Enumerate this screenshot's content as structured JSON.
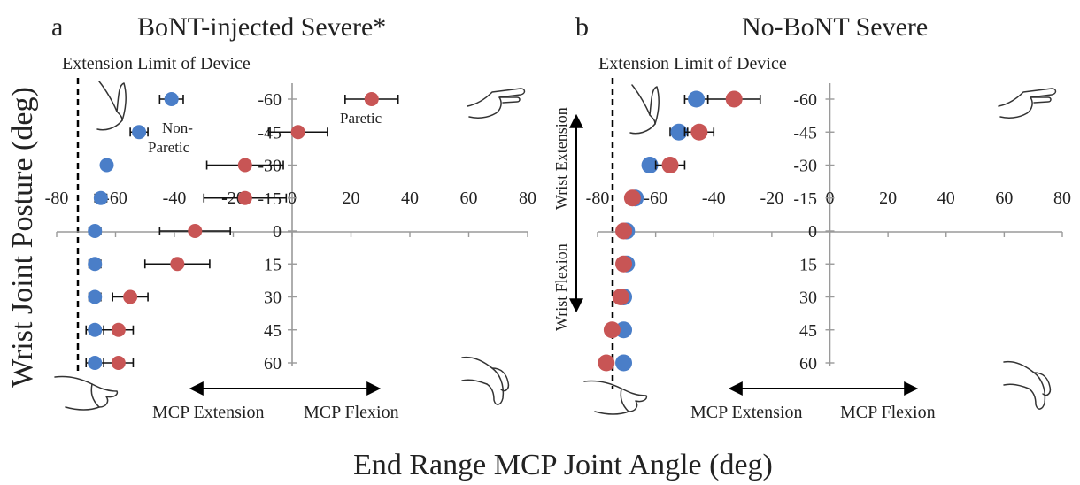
{
  "figure": {
    "ylabel": "Wrist Joint Posture (deg)",
    "xlabel": "End Range MCP Joint Angle (deg)"
  },
  "colors": {
    "non_paretic": "#4a7ec8",
    "paretic": "#c85555",
    "axis": "#9a9a9a"
  },
  "icons": {
    "extended_hand": "hand-extended-icon",
    "flexed_hand": "hand-flexed-icon",
    "pointing_hand": "hand-pointing-icon",
    "drooping_hand": "hand-drooping-icon"
  },
  "panels": [
    {
      "letter": "a",
      "title": "BoNT-injected Severe*",
      "limit_label": "Extension Limit of Device",
      "mcp_extension_label": "MCP Extension",
      "mcp_flexion_label": "MCP Flexion",
      "legend_non_paretic": [
        "Non-",
        "Paretic"
      ],
      "legend_paretic": "Paretic",
      "wrist_extension_label": "",
      "wrist_flexion_label": ""
    },
    {
      "letter": "b",
      "title": "No-BoNT Severe",
      "limit_label": "Extension Limit of Device",
      "mcp_extension_label": "MCP Extension",
      "mcp_flexion_label": "MCP Flexion",
      "legend_non_paretic": [],
      "legend_paretic": "",
      "wrist_extension_label": "Wrist Extension",
      "wrist_flexion_label": "Wrist Flexion"
    }
  ],
  "chart_data": [
    {
      "type": "scatter",
      "title": "BoNT-injected Severe*",
      "xlim": [
        -80,
        80
      ],
      "ylim": [
        -60,
        60
      ],
      "y_inverted": true,
      "x_ticks": [
        -80,
        -60,
        -40,
        -20,
        0,
        20,
        40,
        60,
        80
      ],
      "y_ticks": [
        -60,
        -45,
        -30,
        -15,
        0,
        15,
        30,
        45,
        60
      ],
      "extension_limit": -82,
      "series": [
        {
          "name": "Non-Paretic",
          "color": "#4a7ec8",
          "points": [
            {
              "y": -60,
              "x": -41,
              "err": 4
            },
            {
              "y": -45,
              "x": -52,
              "err": 3
            },
            {
              "y": -30,
              "x": -63,
              "err": 1
            },
            {
              "y": -15,
              "x": -65,
              "err": 2
            },
            {
              "y": 0,
              "x": -67,
              "err": 2
            },
            {
              "y": 15,
              "x": -67,
              "err": 2
            },
            {
              "y": 30,
              "x": -67,
              "err": 2
            },
            {
              "y": 45,
              "x": -67,
              "err": 3
            },
            {
              "y": 60,
              "x": -67,
              "err": 3
            }
          ]
        },
        {
          "name": "Paretic",
          "color": "#c85555",
          "points": [
            {
              "y": -60,
              "x": 27,
              "err": 9
            },
            {
              "y": -45,
              "x": 2,
              "err": 10
            },
            {
              "y": -30,
              "x": -16,
              "err": 13
            },
            {
              "y": -15,
              "x": -16,
              "err": 14
            },
            {
              "y": 0,
              "x": -33,
              "err": 12
            },
            {
              "y": 15,
              "x": -39,
              "err": 11
            },
            {
              "y": 30,
              "x": -55,
              "err": 6
            },
            {
              "y": 45,
              "x": -59,
              "err": 5
            },
            {
              "y": 60,
              "x": -59,
              "err": 5
            }
          ]
        }
      ]
    },
    {
      "type": "scatter",
      "title": "No-BoNT Severe",
      "xlim": [
        -80,
        80
      ],
      "ylim": [
        -60,
        60
      ],
      "y_inverted": true,
      "x_ticks": [
        -80,
        -60,
        -40,
        -20,
        0,
        20,
        40,
        60,
        80
      ],
      "y_ticks": [
        -60,
        -45,
        -30,
        -15,
        0,
        15,
        30,
        45,
        60
      ],
      "extension_limit": -76,
      "series": [
        {
          "name": "Non-Paretic",
          "color": "#4a7ec8",
          "points": [
            {
              "y": -60,
              "x": -46,
              "err": 4
            },
            {
              "y": -45,
              "x": -52,
              "err": 3
            },
            {
              "y": -30,
              "x": -62,
              "err": 2
            },
            {
              "y": -15,
              "x": -67,
              "err": 2
            },
            {
              "y": 0,
              "x": -70,
              "err": 1
            },
            {
              "y": 15,
              "x": -70,
              "err": 1
            },
            {
              "y": 30,
              "x": -71,
              "err": 1
            },
            {
              "y": 45,
              "x": -71,
              "err": 1
            },
            {
              "y": 60,
              "x": -71,
              "err": 1
            }
          ]
        },
        {
          "name": "Paretic",
          "color": "#c85555",
          "points": [
            {
              "y": -60,
              "x": -33,
              "err": 9
            },
            {
              "y": -45,
              "x": -45,
              "err": 5
            },
            {
              "y": -30,
              "x": -55,
              "err": 5
            },
            {
              "y": -15,
              "x": -68,
              "err": 2
            },
            {
              "y": 0,
              "x": -71,
              "err": 1
            },
            {
              "y": 15,
              "x": -71,
              "err": 1
            },
            {
              "y": 30,
              "x": -72,
              "err": 1
            },
            {
              "y": 45,
              "x": -75,
              "err": 1
            },
            {
              "y": 60,
              "x": -77,
              "err": 1
            }
          ]
        }
      ]
    }
  ]
}
